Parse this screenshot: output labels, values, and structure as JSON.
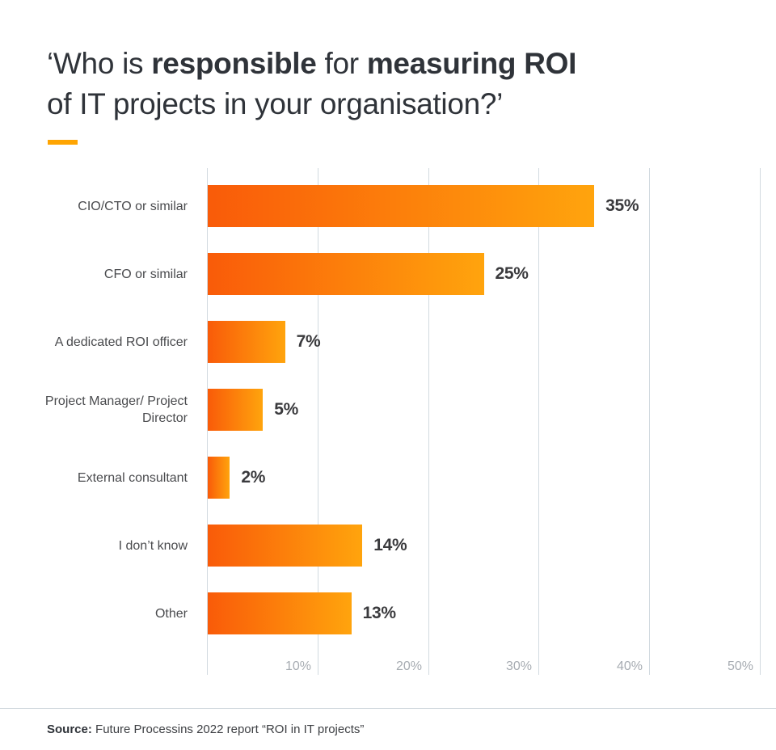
{
  "title": {
    "line1_parts": [
      {
        "text": "‘Who is ",
        "bold": false
      },
      {
        "text": "responsible",
        "bold": true
      },
      {
        "text": " for ",
        "bold": false
      },
      {
        "text": "measuring ROI",
        "bold": true
      }
    ],
    "line2": "of IT projects in your organisation?’",
    "accent_color": "#FFA502"
  },
  "chart_data": {
    "type": "bar",
    "orientation": "horizontal",
    "title": "‘Who is responsible for measuring ROI of IT projects in your organisation?’",
    "categories": [
      "CIO/CTO or similar",
      "CFO or similar",
      "A dedicated ROI officer",
      "Project Manager/ Project Director",
      "External consultant",
      "I don’t know",
      "Other"
    ],
    "values": [
      35,
      25,
      7,
      5,
      2,
      14,
      13
    ],
    "value_labels": [
      "35%",
      "25%",
      "7%",
      "5%",
      "2%",
      "14%",
      "13%"
    ],
    "x_tick_labels": [
      "10%",
      "20%",
      "30%",
      "40%",
      "50%"
    ],
    "xlabel": "",
    "ylabel": "",
    "xlim": [
      0,
      50
    ],
    "grid": true,
    "legend": false,
    "bar_gradient": [
      "#F95B09",
      "#FFA40D"
    ],
    "gridline_color": "#D2DAE0"
  },
  "footer": {
    "source_label": "Source:",
    "source_text": " Future Processins 2022 report “ROI in IT projects”"
  }
}
